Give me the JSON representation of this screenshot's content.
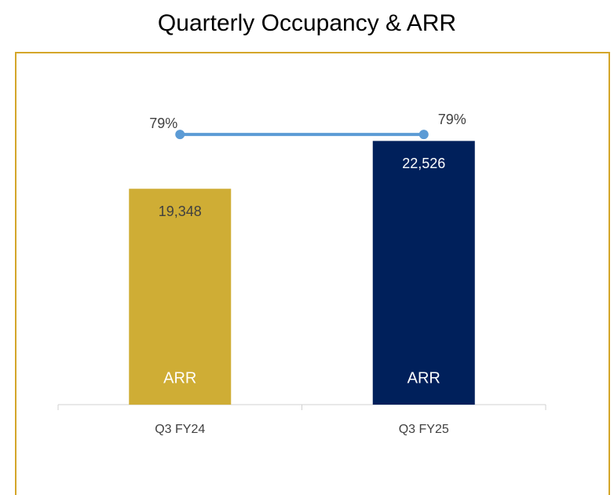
{
  "chart_data": {
    "type": "bar",
    "title": "Quarterly Occupancy & ARR",
    "categories": [
      "Q3 FY24",
      "Q3 FY25"
    ],
    "series": [
      {
        "name": "ARR",
        "type": "bar",
        "colors": [
          "#cfad35",
          "#00205b"
        ],
        "label_colors": [
          "#404040",
          "#ffffff"
        ],
        "values": [
          19348,
          22526
        ],
        "value_labels": [
          "19,348",
          "22,526"
        ]
      },
      {
        "type": "line",
        "axis": "y2",
        "color": "#5b9bd5",
        "values": [
          79,
          79
        ],
        "value_labels": [
          "79%",
          "79%"
        ]
      }
    ],
    "ylim": [
      5000,
      25000
    ],
    "y2lim": [
      0,
      88
    ]
  }
}
